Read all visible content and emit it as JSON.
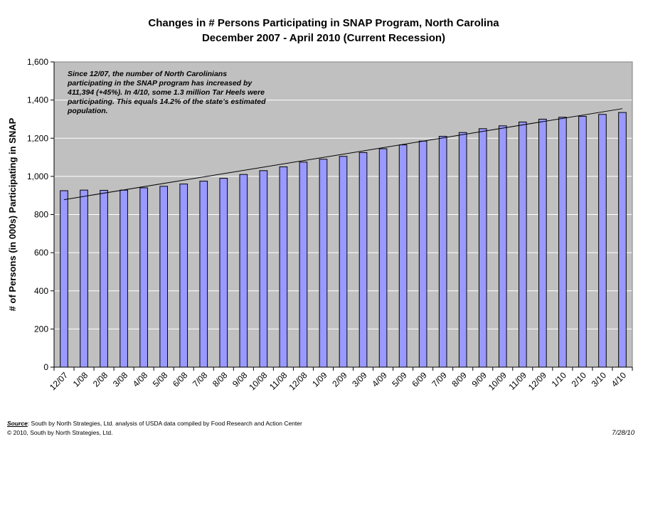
{
  "chart_data": {
    "type": "bar",
    "title": "Changes in # Persons Participating in SNAP Program, North Carolina",
    "subtitle": "December 2007 - April 2010 (Current Recession)",
    "ylabel": "# of Persons (in 000s) Participating in SNAP",
    "xlabel": "",
    "ylim": [
      0,
      1600
    ],
    "yticks": [
      "0",
      "200",
      "400",
      "600",
      "800",
      "1,000",
      "1,200",
      "1,400",
      "1,600"
    ],
    "ytick_values": [
      0,
      200,
      400,
      600,
      800,
      1000,
      1200,
      1400,
      1600
    ],
    "grid": true,
    "legend": "none",
    "categories": [
      "12/07",
      "1/08",
      "2/08",
      "3/08",
      "4/08",
      "5/08",
      "6/08",
      "7/08",
      "8/08",
      "9/08",
      "10/08",
      "11/08",
      "12/08",
      "1/09",
      "2/09",
      "3/09",
      "4/09",
      "5/09",
      "6/09",
      "7/09",
      "8/09",
      "9/09",
      "10/09",
      "11/09",
      "12/09",
      "1/10",
      "2/10",
      "3/10",
      "4/10"
    ],
    "values": [
      925,
      928,
      927,
      928,
      940,
      948,
      960,
      975,
      990,
      1010,
      1030,
      1050,
      1075,
      1090,
      1105,
      1125,
      1145,
      1165,
      1185,
      1210,
      1230,
      1250,
      1265,
      1285,
      1300,
      1310,
      1315,
      1325,
      1335
    ],
    "trendline": {
      "start": 878,
      "end": 1355
    },
    "annotation": [
      "Since 12/07, the number of North Carolinians",
      "participating in the SNAP program has increased by",
      "411,394 (+45%). In 4/10, some 1.3 million Tar Heels were",
      "participating. This equals 14.2% of the state's estimated",
      "population."
    ],
    "colors": {
      "bar": "#9999ff",
      "plot_bg": "#c0c0c0",
      "grid": "#ffffff",
      "trend": "#000000"
    }
  },
  "footer": {
    "source_label": "Source",
    "source_text": ":  South by North Strategies, Ltd. analysis of USDA data compiled by Food Research and Action Center",
    "copyright": "© 2010, South by North Strategies, Ltd.",
    "date": "7/28/10"
  }
}
